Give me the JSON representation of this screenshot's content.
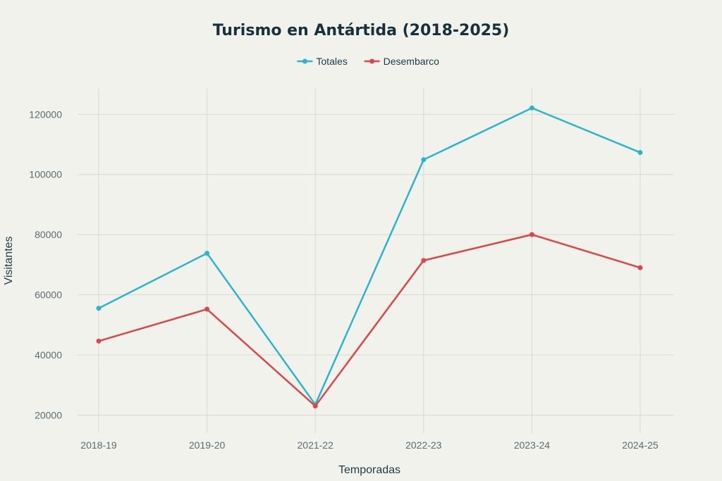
{
  "chart_data": {
    "type": "line",
    "title": "Turismo en Antártida (2018-2025)",
    "xlabel": "Temporadas",
    "ylabel": "Visitantes",
    "categories": [
      "2018-19",
      "2019-20",
      "2021-22",
      "2022-23",
      "2023-24",
      "2024-25"
    ],
    "yticks": [
      20000,
      40000,
      60000,
      80000,
      100000,
      120000
    ],
    "ylim": [
      14000,
      128500
    ],
    "grid": true,
    "legend_position": "top-center",
    "series": [
      {
        "name": "Totales",
        "color": "#2bb5cc",
        "values": [
          55500,
          73800,
          23500,
          104900,
          122100,
          107300
        ]
      },
      {
        "name": "Desembarco",
        "color": "#d94848",
        "values": [
          44600,
          55200,
          23000,
          71400,
          80000,
          69000
        ]
      }
    ]
  }
}
